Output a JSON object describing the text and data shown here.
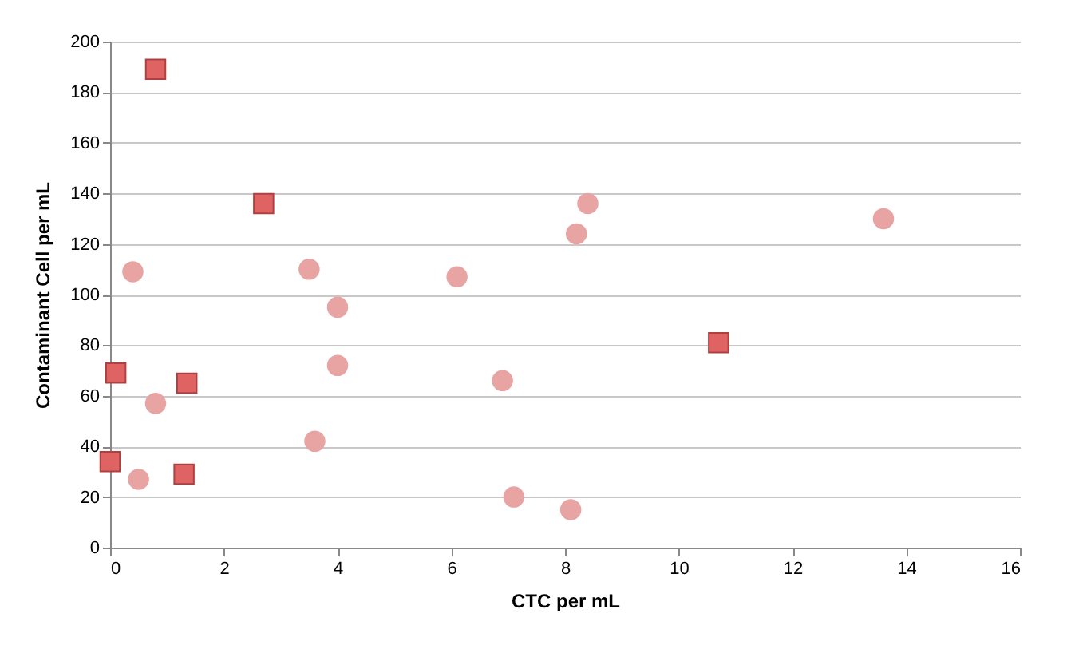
{
  "chart_data": {
    "type": "scatter",
    "xlabel": "CTC per mL",
    "ylabel": "Contaminant Cell per mL",
    "xlim": [
      0,
      16
    ],
    "xticks": [
      0,
      2,
      4,
      6,
      8,
      10,
      12,
      14,
      16
    ],
    "ylim": [
      0,
      200
    ],
    "yticks": [
      0,
      20,
      40,
      60,
      80,
      100,
      120,
      140,
      160,
      180,
      200
    ],
    "grid": "y",
    "legend": false,
    "series": [
      {
        "color": "#e8a3a3",
        "marker": "circle",
        "x": [
          0.4,
          3.5,
          4.0,
          4.0,
          6.1,
          8.2,
          8.4,
          13.6,
          0.8,
          6.9,
          3.6,
          0.5,
          7.1,
          8.1
        ],
        "values": [
          109,
          110,
          95,
          72,
          107,
          124,
          136,
          130,
          57,
          66,
          42,
          27,
          20,
          15
        ]
      },
      {
        "color": "#e06363",
        "marker": "square",
        "x": [
          0.8,
          2.7,
          0.1,
          1.35,
          0,
          1.3,
          10.7
        ],
        "values": [
          189,
          136,
          69,
          65,
          34,
          29,
          81
        ]
      }
    ]
  }
}
